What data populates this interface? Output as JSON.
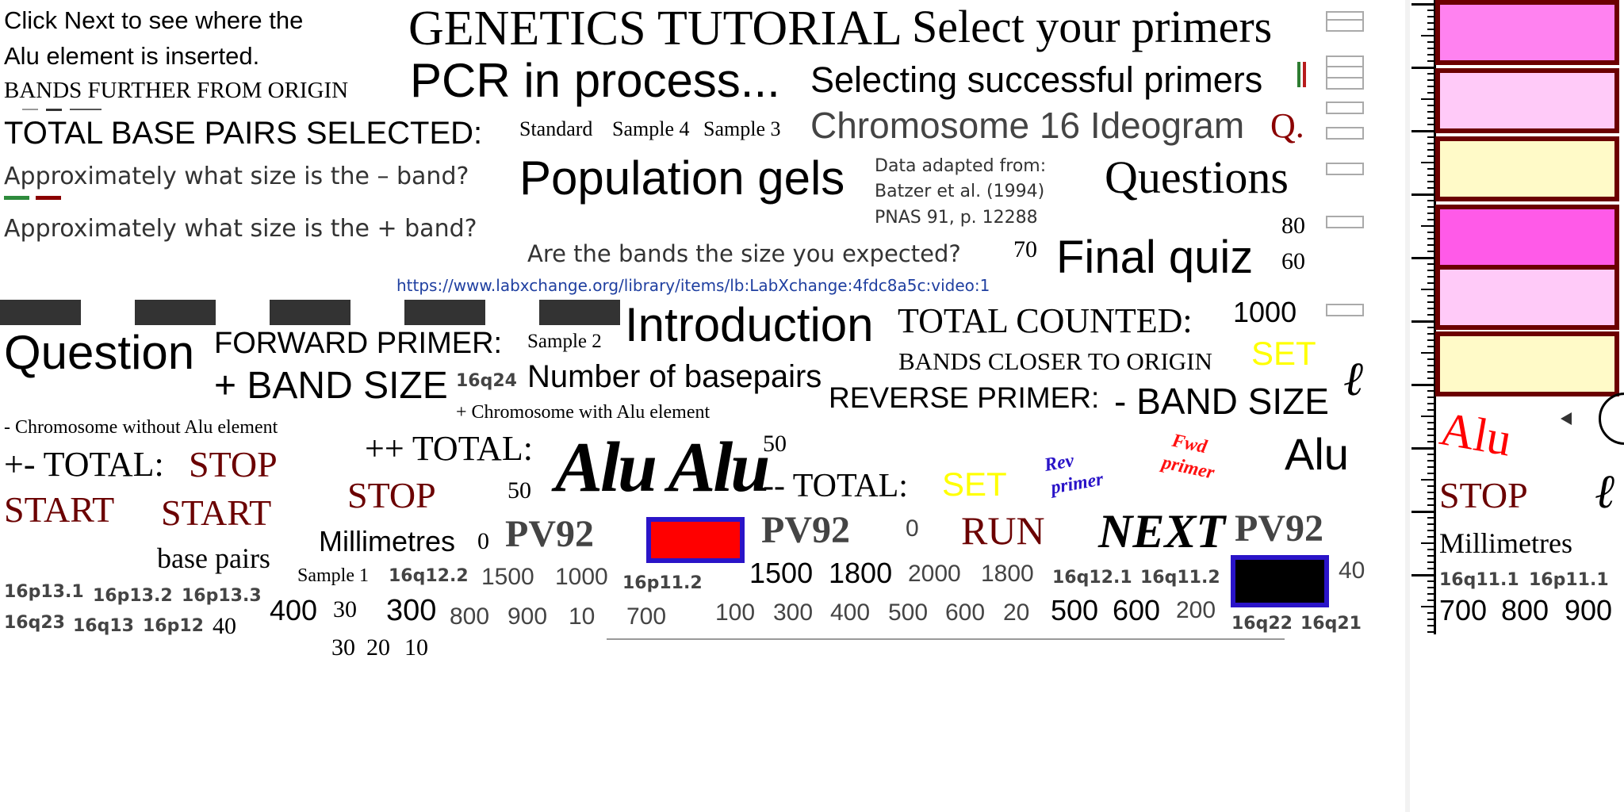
{
  "colors": {
    "maroon": "#6b0000",
    "gray_text": "#444444",
    "link_blue": "#1f3fa0",
    "yellow": "#ffff00",
    "red": "#ff0000",
    "blue_border": "#2a14c8",
    "swatch_pink_bright": "#ff82f0",
    "swatch_pink_light": "#ffcaf8",
    "swatch_cream": "#fffac8",
    "swatch_magenta": "#ff5ae8"
  },
  "texts": {
    "click_next_line1": "Click Next to see where the",
    "click_next_line2": "Alu element is inserted.",
    "bands_further": "BANDS FURTHER FROM ORIGIN",
    "total_bp_selected": "TOTAL BASE PAIRS SELECTED:",
    "q_minus_band": "Approximately what size is the – band?",
    "q_plus_band": "Approximately what size is the + band?",
    "genetics_tutorial": "GENETICS TUTORIAL",
    "select_primers": "Select your primers",
    "pcr_in_process": "PCR in process...",
    "selecting_primers": "Selecting successful primers",
    "standard": "Standard",
    "sample4": "Sample 4",
    "sample3": "Sample 3",
    "chromosome16": "Chromosome 16 Ideogram",
    "q_label": "Q.",
    "population_gels": "Population gels",
    "data_adapted_1": "Data adapted from:",
    "data_adapted_2": "Batzer et al. (1994)",
    "data_adapted_3": "PNAS 91, p. 12288",
    "questions": "Questions",
    "n80": "80",
    "n60": "60",
    "n70": "70",
    "bands_expected": "Are the bands the size you expected?",
    "final_quiz": "Final quiz",
    "url": "https://www.labxchange.org/library/items/lb:LabXchange:4fdc8a5c:video:1",
    "question": "Question",
    "forward_primer": "FORWARD PRIMER:",
    "sample2": "Sample 2",
    "introduction": "Introduction",
    "total_counted": "TOTAL COUNTED:",
    "n1000": "1000",
    "plus_band_size": "+ BAND SIZE",
    "q16q24": "16q24",
    "number_bp": "Number of basepairs",
    "bands_closer": "BANDS CLOSER TO ORIGIN",
    "set1": "SET",
    "reverse_primer": "REVERSE PRIMER:",
    "minus_band_size": "- BAND SIZE",
    "ell1": "ℓ",
    "plus_chrom": "+ Chromosome with Alu element",
    "minus_chrom": "- Chromosome without Alu element",
    "pm_total": "+- TOTAL:",
    "stop1": "STOP",
    "pp_total": "++ TOTAL:",
    "alu_script": "Alu Alu",
    "n50a": "50",
    "mm_total": "-- TOTAL:",
    "set2": "SET",
    "rev_primer_1": "Rev",
    "rev_primer_2": "primer",
    "fwd_primer_1": "Fwd",
    "fwd_primer_2": "primer",
    "alu_big": "Alu",
    "start1": "START",
    "start2": "START",
    "stop2": "STOP",
    "n50b": "50",
    "millimetres1": "Millimetres",
    "n0a": "0",
    "pv92_1": "PV92",
    "pv92_2": "PV92",
    "n0b": "0",
    "run": "RUN",
    "next": "NEXT",
    "pv92_3": "PV92",
    "base_pairs": "base pairs",
    "sample1": "Sample 1",
    "q16q12_2": "16q12.2",
    "n1500a": "1500",
    "n1000b": "1000",
    "p16p11_2": "16p11.2",
    "n1500b": "1500",
    "n1800a": "1800",
    "n2000": "2000",
    "n1800b": "1800",
    "q16q12_1": "16q12.1",
    "q16q11_2": "16q11.2",
    "n40a": "40",
    "p16p13_1": "16p13.1",
    "p16p13_2": "16p13.2",
    "p16p13_3": "16p13.3",
    "n400": "400",
    "n30a": "30",
    "n300": "300",
    "n800": "800",
    "n900": "900",
    "n10a": "10",
    "n700": "700",
    "n100": "100",
    "n300b": "300",
    "n400b": "400",
    "n500": "500",
    "n600": "600",
    "n20a": "20",
    "n500b": "500",
    "n600b": "600",
    "n200": "200",
    "q16q23": "16q23",
    "q16q13": "16q13",
    "p16p12": "16p12",
    "n40b": "40",
    "n30b": "30",
    "n20b": "20",
    "n10b": "10",
    "q16q22": "16q22",
    "q16q21": "16q21",
    "alu_red": "Alu",
    "stop3": "STOP",
    "ell2": "ℓ",
    "millimetres2": "Millimetres",
    "q16q11_1": "16q11.1",
    "p16p11_1": "16p11.1",
    "n700b": "700",
    "n800b": "800",
    "n900b": "900"
  }
}
